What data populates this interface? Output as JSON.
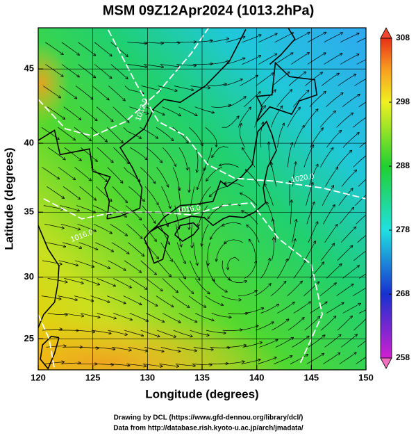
{
  "title": "MSM 09Z12Apr2024 (1013.2hPa)",
  "x_label": "Longitude (degrees)",
  "y_label": "Latitude  (degrees)",
  "lon_range": [
    120,
    150
  ],
  "lat_range": [
    22.4,
    47.6
  ],
  "lon_ticks": [
    120,
    125,
    130,
    135,
    140,
    145,
    150
  ],
  "lat_ticks": [
    25,
    30,
    35,
    40,
    45
  ],
  "colorbar": {
    "range": [
      258,
      308
    ],
    "ticks": [
      258,
      268,
      278,
      288,
      298,
      308
    ]
  },
  "contour_labels": [
    "1020.0",
    "1016.0",
    "1012.0",
    "1016.0"
  ],
  "footer": [
    "Drawing by DCL (https://www.gfd-dennou.org/library/dcl/)",
    "Data from http://database.rish.kyoto-u.ac.jp/arch/jmadata/"
  ]
}
